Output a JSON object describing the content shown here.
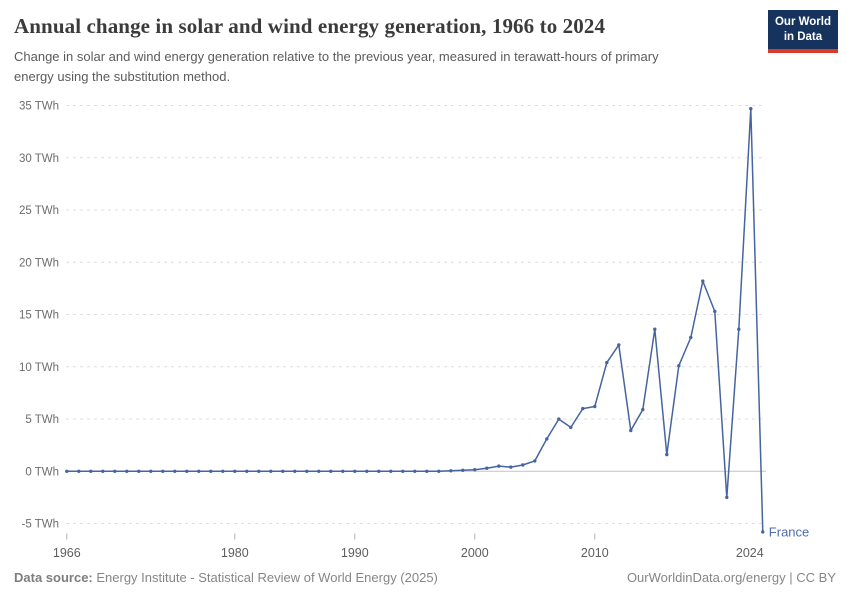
{
  "header": {
    "title": "Annual change in solar and wind energy generation, 1966 to 2024",
    "subtitle": "Change in solar and wind energy generation relative to the previous year, measured in terawatt-hours of primary energy using the substitution method.",
    "logo": {
      "line1": "Our World",
      "line2": "in Data",
      "bg_color": "#16335e",
      "stripe_color": "#d93a2b"
    }
  },
  "footer": {
    "source_label": "Data source:",
    "source_text": " Energy Institute - Statistical Review of World Energy (2025)",
    "credit": "OurWorldinData.org/energy | CC BY"
  },
  "chart_data": {
    "type": "line",
    "entity_label": "France",
    "unit": "TWh",
    "line_color": "#4664a0",
    "entity_label_color": "#4e6dac",
    "grid_color": "#dedede",
    "zero_line_color": "#c4c4c4",
    "axis_tick_color": "#b0b0b0",
    "y_label_color": "#6d6d6d",
    "x_label_color": "#5f5f5f",
    "grid": true,
    "xlim": [
      1966,
      2024
    ],
    "ylim": [
      -6.5,
      35.5
    ],
    "y_ticks": [
      {
        "value": 35,
        "label": "35 TWh"
      },
      {
        "value": 30,
        "label": "30 TWh"
      },
      {
        "value": 25,
        "label": "25 TWh"
      },
      {
        "value": 20,
        "label": "20 TWh"
      },
      {
        "value": 15,
        "label": "15 TWh"
      },
      {
        "value": 10,
        "label": "10 TWh"
      },
      {
        "value": 5,
        "label": "5 TWh"
      },
      {
        "value": 0,
        "label": "0 TWh"
      },
      {
        "value": -5,
        "label": "-5 TWh"
      }
    ],
    "x_ticks": [
      {
        "year": 1966,
        "label": "1966",
        "label_dx": 0,
        "draw_tick": true
      },
      {
        "year": 1980,
        "label": "1980",
        "label_dx": 0,
        "draw_tick": true
      },
      {
        "year": 1990,
        "label": "1990",
        "label_dx": 0,
        "draw_tick": true
      },
      {
        "year": 2000,
        "label": "2000",
        "label_dx": 0,
        "draw_tick": true
      },
      {
        "year": 2010,
        "label": "2010",
        "label_dx": 0,
        "draw_tick": true
      },
      {
        "year": 2024,
        "label": "2024",
        "label_dx": -13,
        "draw_tick": false
      }
    ],
    "years": [
      1966,
      1967,
      1968,
      1969,
      1970,
      1971,
      1972,
      1973,
      1974,
      1975,
      1976,
      1977,
      1978,
      1979,
      1980,
      1981,
      1982,
      1983,
      1984,
      1985,
      1986,
      1987,
      1988,
      1989,
      1990,
      1991,
      1992,
      1993,
      1994,
      1995,
      1996,
      1997,
      1998,
      1999,
      2000,
      2001,
      2002,
      2003,
      2004,
      2005,
      2006,
      2007,
      2008,
      2009,
      2010,
      2011,
      2012,
      2013,
      2014,
      2015,
      2016,
      2017,
      2018,
      2019,
      2020,
      2021,
      2022,
      2023,
      2024
    ],
    "values": [
      0,
      0,
      0,
      0,
      0,
      0,
      0,
      0,
      0,
      0,
      0,
      0,
      0,
      0,
      0,
      0,
      0,
      0,
      0,
      0,
      0,
      0,
      0,
      0,
      0,
      0,
      0,
      0,
      0,
      0,
      0,
      0,
      0.05,
      0.1,
      0.15,
      0.3,
      0.5,
      0.4,
      0.6,
      1.0,
      3.1,
      5.0,
      4.2,
      6.0,
      6.2,
      10.4,
      12.1,
      3.9,
      5.9,
      13.6,
      1.6,
      10.1,
      12.8,
      18.2,
      15.3,
      -2.5,
      13.6,
      34.7,
      -5.8
    ]
  }
}
